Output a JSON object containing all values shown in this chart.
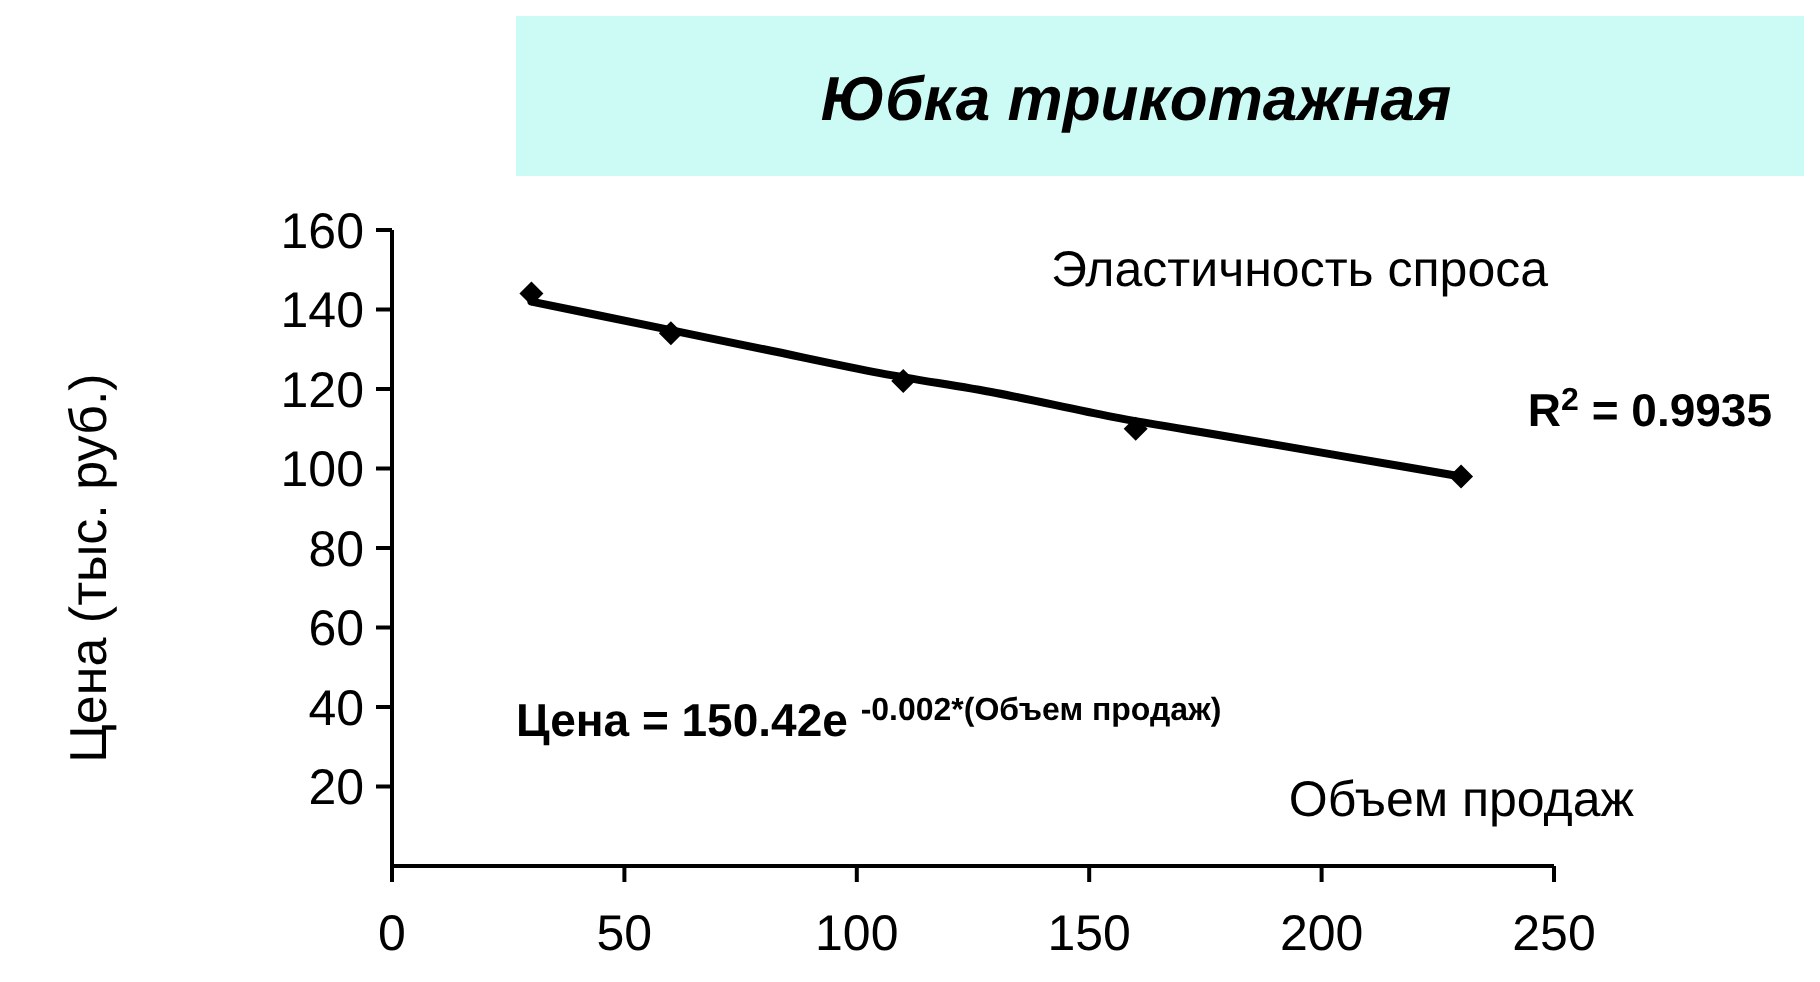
{
  "chart_data": {
    "type": "scatter",
    "title": "Юбка  трикотажная",
    "xlabel": "Объем  продаж",
    "ylabel": "Цена (тыс. руб.)",
    "annotations": [
      "Эластичность  спроса",
      "R$^{2}$ = 0.9935",
      "Цена = 150.42e $^{-0.002*(Объем  продаж)}$"
    ],
    "series": [
      {
        "color": "#000000",
        "x": [
          30,
          60,
          110,
          160,
          230
        ],
        "values": [
          144,
          134,
          122,
          110,
          98
        ],
        "marker": "diamond"
      },
      {
        "type": "line",
        "color": "#000000",
        "x": [
          30,
          55,
          80,
          105,
          130,
          155,
          180,
          205,
          230
        ],
        "values": [
          142,
          136,
          130,
          124,
          119,
          113,
          108,
          103,
          98
        ],
        "line_style": "solid",
        "marker": "none"
      }
    ],
    "xlim": [
      0,
      250
    ],
    "xticks": [
      0,
      50,
      100,
      150,
      200,
      250
    ],
    "ylim": [
      0,
      160
    ],
    "yticks": [
      20,
      40,
      60,
      80,
      100,
      120,
      140,
      160
    ],
    "grid": false
  }
}
